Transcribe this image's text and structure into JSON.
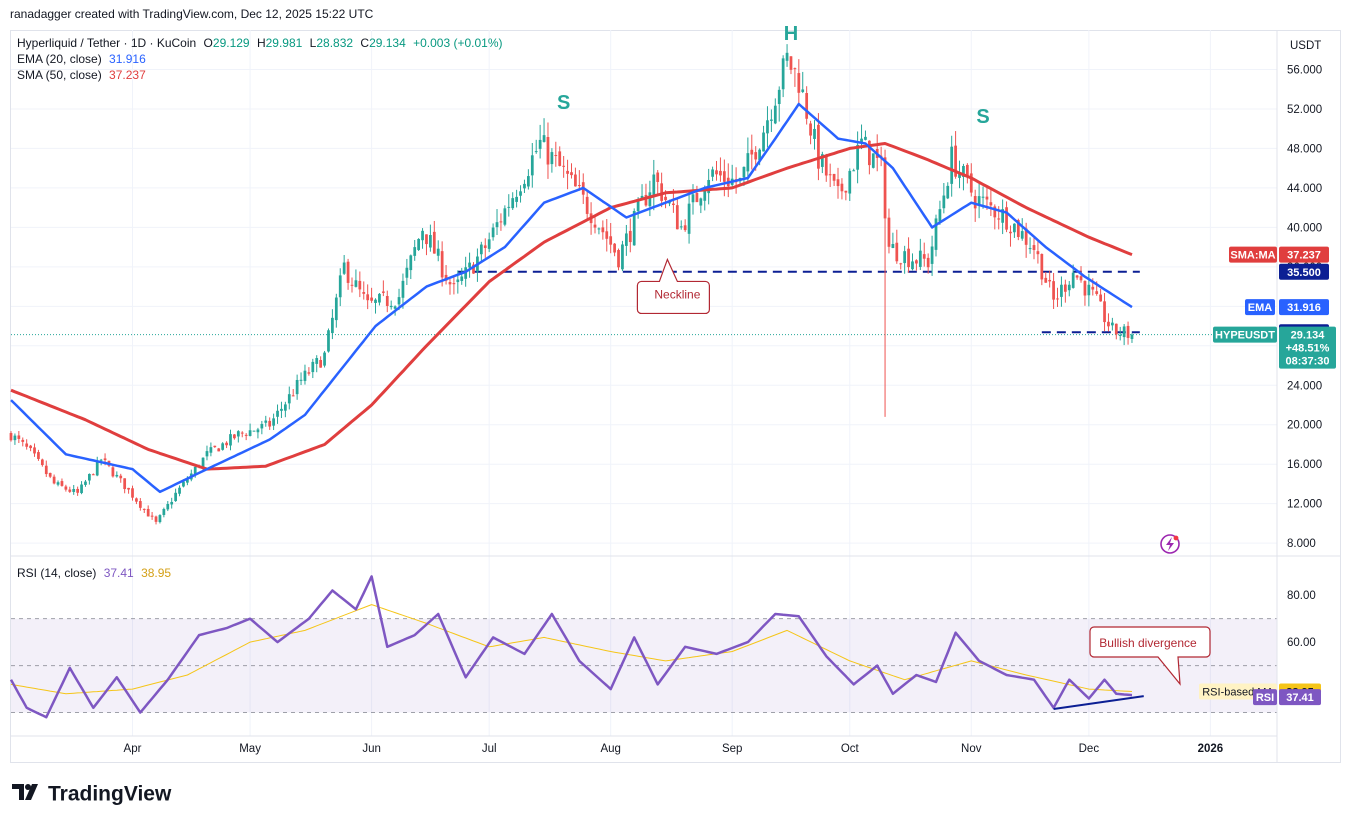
{
  "header": {
    "text": "ranadagger created with TradingView.com, Dec 12, 2025 15:22 UTC"
  },
  "legend": {
    "symbol": "Hyperliquid / Tether · 1D · KuCoin",
    "ohlc": [
      {
        "label": "O",
        "value": "29.129"
      },
      {
        "label": "H",
        "value": "29.981"
      },
      {
        "label": "L",
        "value": "28.832"
      },
      {
        "label": "C",
        "value": "29.134"
      }
    ],
    "change": "+0.003 (+0.01%)",
    "ema_label": "EMA (20, close)",
    "ema_value": "31.916",
    "sma_label": "SMA (50, close)",
    "sma_value": "37.237",
    "rsi_label": "RSI (14, close)",
    "rsi_value": "37.41",
    "rsi_ma_value": "38.95"
  },
  "footer": {
    "brand": "TradingView"
  },
  "colors": {
    "up": "#26a69a",
    "down": "#ef5350",
    "ema": "#2962ff",
    "sma": "#e03e3e",
    "rsi": "#7e57c2",
    "rsi_ma": "#f5c518",
    "level": "#0c1f94",
    "annotation": "#b22833"
  },
  "icons": {
    "bolt": "lightning-bolt-icon",
    "logo": "tradingview-logo-icon"
  },
  "chart_data": [
    {
      "type": "candlestick",
      "title": "Hyperliquid / Tether · 1D · KuCoin",
      "currency": "USDT",
      "ylim": [
        6.8,
        60
      ],
      "yticks": [
        8,
        12,
        16,
        20,
        24,
        28,
        32,
        36,
        40,
        44,
        48,
        52,
        56
      ],
      "ytick_labels": [
        "8.000",
        "12.000",
        "16.000",
        "20.000",
        "24.000",
        "28.000",
        "32.000",
        "36.000",
        "40.000",
        "44.000",
        "48.000",
        "52.000",
        "56.000"
      ],
      "x_labels": [
        "Apr",
        "May",
        "Jun",
        "Jul",
        "Aug",
        "Sep",
        "Oct",
        "Nov",
        "Dec",
        "2026"
      ],
      "x_label_dates": [
        "2025-04-01",
        "2025-05-01",
        "2025-06-01",
        "2025-07-01",
        "2025-08-01",
        "2025-09-01",
        "2025-10-01",
        "2025-11-01",
        "2025-12-01",
        "2026-01-01"
      ],
      "date_range": [
        "2025-03-01",
        "2026-01-18"
      ],
      "price_keypoints": [
        [
          "2025-03-01",
          19.0
        ],
        [
          "2025-03-06",
          17.2
        ],
        [
          "2025-03-12",
          14.0
        ],
        [
          "2025-03-18",
          13.0
        ],
        [
          "2025-03-24",
          16.5
        ],
        [
          "2025-03-30",
          13.8
        ],
        [
          "2025-04-07",
          10.0
        ],
        [
          "2025-04-12",
          13.0
        ],
        [
          "2025-04-20",
          17.0
        ],
        [
          "2025-04-28",
          19.0
        ],
        [
          "2025-05-06",
          20.0
        ],
        [
          "2025-05-14",
          24.5
        ],
        [
          "2025-05-20",
          27.0
        ],
        [
          "2025-05-25",
          36.0
        ],
        [
          "2025-05-31",
          32.0
        ],
        [
          "2025-06-08",
          33.0
        ],
        [
          "2025-06-14",
          40.0
        ],
        [
          "2025-06-22",
          33.5
        ],
        [
          "2025-06-30",
          38.0
        ],
        [
          "2025-07-08",
          44.0
        ],
        [
          "2025-07-14",
          48.5
        ],
        [
          "2025-07-20",
          45.5
        ],
        [
          "2025-07-28",
          41.0
        ],
        [
          "2025-08-03",
          37.0
        ],
        [
          "2025-08-12",
          45.0
        ],
        [
          "2025-08-19",
          40.0
        ],
        [
          "2025-08-26",
          45.5
        ],
        [
          "2025-09-03",
          44.5
        ],
        [
          "2025-09-09",
          50.0
        ],
        [
          "2025-09-15",
          57.0
        ],
        [
          "2025-09-18",
          55.0
        ],
        [
          "2025-09-23",
          47.0
        ],
        [
          "2025-09-28",
          43.0
        ],
        [
          "2025-10-04",
          48.5
        ],
        [
          "2025-10-09",
          46.0
        ],
        [
          "2025-10-11",
          38.0
        ],
        [
          "2025-10-16",
          37.0
        ],
        [
          "2025-10-21",
          36.5
        ],
        [
          "2025-10-27",
          47.0
        ],
        [
          "2025-11-02",
          43.0
        ],
        [
          "2025-11-10",
          41.0
        ],
        [
          "2025-11-17",
          38.0
        ],
        [
          "2025-11-22",
          32.5
        ],
        [
          "2025-11-27",
          35.5
        ],
        [
          "2025-12-02",
          33.0
        ],
        [
          "2025-12-07",
          29.5
        ],
        [
          "2025-12-12",
          29.134
        ]
      ],
      "flash_crash": {
        "date": "2025-10-10",
        "low": 20.8
      },
      "horizontal_levels": [
        {
          "price": 35.5,
          "from": "2025-06-23",
          "to": "2025-12-14",
          "label": "35.500"
        },
        {
          "price": 29.37,
          "from": "2025-11-19",
          "to": "2025-12-14",
          "label": "29.370"
        }
      ],
      "ema": {
        "name": "EMA",
        "value": 31.916,
        "keypoints": [
          [
            "2025-03-01",
            22.5
          ],
          [
            "2025-03-15",
            17.0
          ],
          [
            "2025-04-01",
            15.5
          ],
          [
            "2025-04-08",
            13.2
          ],
          [
            "2025-04-20",
            15.5
          ],
          [
            "2025-05-06",
            18.5
          ],
          [
            "2025-05-15",
            21.0
          ],
          [
            "2025-05-25",
            26.0
          ],
          [
            "2025-06-02",
            30.0
          ],
          [
            "2025-06-15",
            34.0
          ],
          [
            "2025-06-25",
            35.5
          ],
          [
            "2025-07-05",
            38.0
          ],
          [
            "2025-07-15",
            42.5
          ],
          [
            "2025-07-25",
            44.0
          ],
          [
            "2025-08-05",
            41.0
          ],
          [
            "2025-08-15",
            42.5
          ],
          [
            "2025-08-25",
            44.0
          ],
          [
            "2025-09-05",
            45.0
          ],
          [
            "2025-09-12",
            49.0
          ],
          [
            "2025-09-18",
            52.5
          ],
          [
            "2025-09-28",
            49.0
          ],
          [
            "2025-10-05",
            48.5
          ],
          [
            "2025-10-12",
            46.0
          ],
          [
            "2025-10-22",
            40.0
          ],
          [
            "2025-11-01",
            42.5
          ],
          [
            "2025-11-10",
            41.5
          ],
          [
            "2025-11-20",
            38.0
          ],
          [
            "2025-11-30",
            35.0
          ],
          [
            "2025-12-12",
            31.916
          ]
        ]
      },
      "sma": {
        "name": "SMA:MA",
        "value": 37.237,
        "keypoints": [
          [
            "2025-03-01",
            23.5
          ],
          [
            "2025-03-20",
            20.5
          ],
          [
            "2025-04-05",
            17.5
          ],
          [
            "2025-04-20",
            15.5
          ],
          [
            "2025-05-05",
            15.8
          ],
          [
            "2025-05-20",
            18.0
          ],
          [
            "2025-06-01",
            22.0
          ],
          [
            "2025-06-15",
            28.0
          ],
          [
            "2025-07-01",
            34.5
          ],
          [
            "2025-07-15",
            38.5
          ],
          [
            "2025-08-01",
            42.0
          ],
          [
            "2025-08-15",
            43.5
          ],
          [
            "2025-09-01",
            44.0
          ],
          [
            "2025-09-15",
            46.0
          ],
          [
            "2025-10-01",
            48.0
          ],
          [
            "2025-10-10",
            48.5
          ],
          [
            "2025-10-20",
            47.0
          ],
          [
            "2025-11-01",
            45.0
          ],
          [
            "2025-11-15",
            42.0
          ],
          [
            "2025-12-01",
            39.0
          ],
          [
            "2025-12-12",
            37.237
          ]
        ]
      },
      "last_price": {
        "symbol": "HYPEUSDT",
        "value": "29.134",
        "change": "+48.51%",
        "countdown": "08:37:30"
      },
      "annotations": [
        {
          "text": "S",
          "date": "2025-07-20",
          "price": 52.0
        },
        {
          "text": "H",
          "date": "2025-09-16",
          "price": 59.0
        },
        {
          "text": "S",
          "date": "2025-11-04",
          "price": 50.6
        },
        {
          "text": "Neckline",
          "date": "2025-08-17",
          "price": 33.0
        }
      ]
    },
    {
      "type": "line",
      "title": "RSI (14, close)",
      "ylim": [
        20,
        95
      ],
      "yticks": [
        40,
        60,
        80
      ],
      "ytick_labels": [
        "40.00",
        "60.00",
        "80.00"
      ],
      "band": [
        30,
        70
      ],
      "midline": 50,
      "rsi_keypoints": [
        [
          "2025-03-01",
          44
        ],
        [
          "2025-03-05",
          32
        ],
        [
          "2025-03-10",
          28
        ],
        [
          "2025-03-16",
          49
        ],
        [
          "2025-03-22",
          32
        ],
        [
          "2025-03-28",
          45
        ],
        [
          "2025-04-03",
          30
        ],
        [
          "2025-04-10",
          44
        ],
        [
          "2025-04-18",
          63
        ],
        [
          "2025-04-25",
          66
        ],
        [
          "2025-05-01",
          70
        ],
        [
          "2025-05-08",
          60
        ],
        [
          "2025-05-16",
          70
        ],
        [
          "2025-05-22",
          82
        ],
        [
          "2025-05-28",
          74
        ],
        [
          "2025-06-01",
          88
        ],
        [
          "2025-06-05",
          58
        ],
        [
          "2025-06-12",
          63
        ],
        [
          "2025-06-18",
          72
        ],
        [
          "2025-06-25",
          45
        ],
        [
          "2025-07-02",
          62
        ],
        [
          "2025-07-10",
          55
        ],
        [
          "2025-07-17",
          72
        ],
        [
          "2025-07-24",
          52
        ],
        [
          "2025-08-01",
          40
        ],
        [
          "2025-08-07",
          62
        ],
        [
          "2025-08-13",
          42
        ],
        [
          "2025-08-20",
          58
        ],
        [
          "2025-08-28",
          55
        ],
        [
          "2025-09-05",
          60
        ],
        [
          "2025-09-12",
          72
        ],
        [
          "2025-09-18",
          71
        ],
        [
          "2025-09-25",
          54
        ],
        [
          "2025-10-02",
          42
        ],
        [
          "2025-10-08",
          50
        ],
        [
          "2025-10-12",
          38
        ],
        [
          "2025-10-18",
          46
        ],
        [
          "2025-10-23",
          43
        ],
        [
          "2025-10-28",
          64
        ],
        [
          "2025-11-03",
          52
        ],
        [
          "2025-11-10",
          46
        ],
        [
          "2025-11-17",
          44
        ],
        [
          "2025-11-22",
          32
        ],
        [
          "2025-11-26",
          44
        ],
        [
          "2025-12-01",
          36
        ],
        [
          "2025-12-05",
          44
        ],
        [
          "2025-12-08",
          38
        ],
        [
          "2025-12-12",
          37.41
        ]
      ],
      "rsi_ma_keypoints": [
        [
          "2025-03-01",
          42
        ],
        [
          "2025-03-15",
          38
        ],
        [
          "2025-04-01",
          40
        ],
        [
          "2025-04-15",
          46
        ],
        [
          "2025-05-01",
          60
        ],
        [
          "2025-05-15",
          65
        ],
        [
          "2025-06-01",
          76
        ],
        [
          "2025-06-15",
          68
        ],
        [
          "2025-07-01",
          58
        ],
        [
          "2025-07-15",
          62
        ],
        [
          "2025-08-01",
          56
        ],
        [
          "2025-08-15",
          52
        ],
        [
          "2025-09-01",
          56
        ],
        [
          "2025-09-15",
          65
        ],
        [
          "2025-10-01",
          52
        ],
        [
          "2025-10-15",
          44
        ],
        [
          "2025-11-01",
          52
        ],
        [
          "2025-11-15",
          46
        ],
        [
          "2025-12-01",
          40
        ],
        [
          "2025-12-12",
          38.95
        ]
      ],
      "series_labels": [
        {
          "name": "RSI-based MA",
          "value": "38.95"
        },
        {
          "name": "RSI",
          "value": "37.41"
        }
      ],
      "trendline": {
        "from": [
          "2025-11-22",
          31.5
        ],
        "to": [
          "2025-12-15",
          37.0
        ]
      },
      "annotation": {
        "text": "Bullish divergence"
      }
    }
  ]
}
